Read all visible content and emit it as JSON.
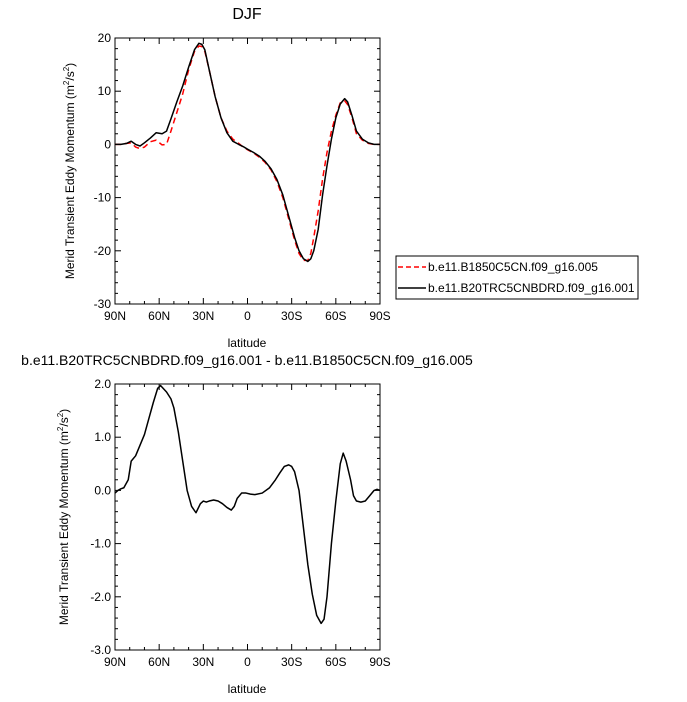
{
  "chart_data": [
    {
      "type": "line",
      "title": "DJF",
      "xlabel": "latitude",
      "ylabel": "Merid Transient Eddy Momentum (m",
      "ylabel_sup": "2",
      "ylabel_mid": "/s",
      "ylabel_sup2": "2",
      "ylabel_end": ")",
      "xlim": [
        90,
        -90
      ],
      "ylim": [
        -30,
        20
      ],
      "xticks": [
        90,
        60,
        30,
        0,
        -30,
        -60,
        -90
      ],
      "xtick_labels": [
        "90N",
        "60N",
        "30N",
        "0",
        "30S",
        "60S",
        "90S"
      ],
      "yticks": [
        -30,
        -20,
        -10,
        0,
        10,
        20
      ],
      "ytick_labels": [
        "-30",
        "-20",
        "-10",
        "0",
        "10",
        "20"
      ],
      "legend_position": "right",
      "series": [
        {
          "name": "b.e11.B1850C5CN.f09_g16.005",
          "color": "#ff0000",
          "dash": "dashed",
          "x": [
            90,
            86,
            82,
            79,
            76,
            73,
            70,
            66,
            62,
            58,
            55,
            52,
            48,
            44,
            40,
            36,
            33,
            31,
            29,
            26,
            22,
            18,
            14,
            10,
            6,
            3,
            0,
            -4,
            -8,
            -12,
            -16,
            -20,
            -24,
            -28,
            -32,
            -35,
            -38,
            -41,
            -43,
            -45,
            -48,
            -51,
            -54,
            -57,
            -60,
            -63,
            -66,
            -68,
            -71,
            -74,
            -78,
            -82,
            -86,
            -90
          ],
          "y": [
            0,
            0,
            0.2,
            0.3,
            -0.5,
            -0.8,
            -0.5,
            0.5,
            0.8,
            -0.1,
            0,
            2.5,
            6,
            9.5,
            14,
            17.5,
            18.5,
            18.4,
            17.5,
            14,
            9,
            5,
            2.5,
            1,
            0.2,
            -0.5,
            -1,
            -1.6,
            -2.4,
            -3.4,
            -4.8,
            -7,
            -10,
            -14,
            -18,
            -20.5,
            -21.8,
            -21.8,
            -20.5,
            -17.5,
            -12.5,
            -6.5,
            -1.5,
            2.5,
            5.5,
            7.8,
            8.2,
            7.5,
            5,
            2,
            0.8,
            0.2,
            0,
            0
          ]
        },
        {
          "name": "b.e11.B20TRC5CNBDRD.f09_g16.001",
          "color": "#000000",
          "dash": "solid",
          "x": [
            90,
            86,
            82,
            79,
            76,
            73,
            70,
            66,
            62,
            58,
            55,
            52,
            48,
            44,
            40,
            36,
            33,
            31,
            29,
            26,
            22,
            18,
            14,
            10,
            6,
            3,
            0,
            -4,
            -8,
            -12,
            -16,
            -20,
            -24,
            -28,
            -32,
            -35,
            -38,
            -41,
            -43,
            -45,
            -48,
            -51,
            -54,
            -57,
            -60,
            -63,
            -66,
            -68,
            -71,
            -74,
            -78,
            -82,
            -86,
            -90
          ],
          "y": [
            0,
            0,
            0.2,
            0.6,
            0,
            -0.3,
            0.3,
            1.2,
            2.2,
            2.0,
            2.5,
            4.8,
            8,
            11,
            14.5,
            17.8,
            19,
            18.8,
            17.8,
            14,
            9,
            5,
            2.2,
            0.6,
            0,
            -0.4,
            -0.9,
            -1.5,
            -2.2,
            -3.2,
            -4.6,
            -6.6,
            -9.5,
            -13.5,
            -17.5,
            -20,
            -21.5,
            -22,
            -21.5,
            -20,
            -16,
            -9.5,
            -4,
            1,
            5,
            7.6,
            8.6,
            8,
            5.4,
            2.5,
            1,
            0.3,
            0,
            0
          ]
        }
      ],
      "legend_entries": [
        "b.e11.B1850C5CN.f09_g16.005",
        "b.e11.B20TRC5CNBDRD.f09_g16.001"
      ]
    },
    {
      "type": "line",
      "title": "b.e11.B20TRC5CNBDRD.f09_g16.001 - b.e11.B1850C5CN.f09_g16.005",
      "xlabel": "latitude",
      "ylabel": "Merid Transient Eddy Momentum (m",
      "ylabel_sup": "2",
      "ylabel_mid": "/s",
      "ylabel_sup2": "2",
      "ylabel_end": ")",
      "xlim": [
        90,
        -90
      ],
      "ylim": [
        -3.0,
        2.0
      ],
      "xticks": [
        90,
        60,
        30,
        0,
        -30,
        -60,
        -90
      ],
      "xtick_labels": [
        "90N",
        "60N",
        "30N",
        "0",
        "30S",
        "60S",
        "90S"
      ],
      "yticks": [
        -3.0,
        -2.0,
        -1.0,
        0.0,
        1.0,
        2.0
      ],
      "ytick_labels": [
        "-3.0",
        "-2.0",
        "-1.0",
        "0.0",
        "1.0",
        "2.0"
      ],
      "series": [
        {
          "name": "",
          "color": "#000000",
          "dash": "solid",
          "x": [
            90,
            88,
            86,
            84,
            81,
            79,
            76,
            73,
            70,
            67,
            64,
            61,
            59,
            55,
            52,
            50,
            47,
            44,
            41,
            38,
            35,
            32,
            30,
            28,
            26,
            23,
            20,
            17,
            14,
            11,
            9,
            7,
            4,
            1,
            -2,
            -5,
            -10,
            -15,
            -19,
            -22,
            -25,
            -28,
            -30,
            -32,
            -35,
            -38,
            -41,
            -44,
            -47,
            -50,
            -52,
            -54,
            -57,
            -60,
            -63,
            -65,
            -67,
            -70,
            -72,
            -74,
            -77,
            -80,
            -83,
            -86,
            -88,
            -90
          ],
          "y": [
            -0.05,
            0.0,
            0.03,
            0.05,
            0.2,
            0.55,
            0.65,
            0.85,
            1.05,
            1.35,
            1.65,
            1.92,
            1.97,
            1.85,
            1.72,
            1.55,
            1.1,
            0.55,
            0.0,
            -0.3,
            -0.42,
            -0.25,
            -0.2,
            -0.22,
            -0.2,
            -0.18,
            -0.2,
            -0.25,
            -0.32,
            -0.37,
            -0.3,
            -0.15,
            -0.05,
            -0.05,
            -0.07,
            -0.08,
            -0.05,
            0.05,
            0.2,
            0.33,
            0.45,
            0.48,
            0.45,
            0.35,
            0.0,
            -0.7,
            -1.4,
            -1.95,
            -2.35,
            -2.5,
            -2.42,
            -2.0,
            -1.0,
            -0.2,
            0.5,
            0.7,
            0.55,
            0.2,
            -0.1,
            -0.2,
            -0.22,
            -0.2,
            -0.1,
            0.0,
            0.02,
            0.0
          ]
        }
      ]
    }
  ]
}
